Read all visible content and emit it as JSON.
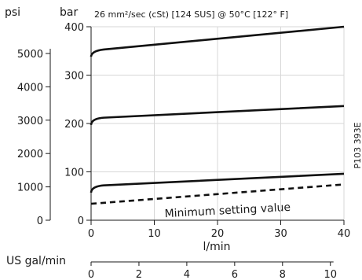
{
  "chart_data": {
    "type": "line",
    "title": "26 mm²/sec (cSt) [124 SUS] @ 50°C [122° F]",
    "code": "P103 393E",
    "xlabel": "l/min",
    "xlabel_secondary": "US gal/min",
    "ylabel_left_outer": "psi",
    "ylabel_left_inner": "bar",
    "xlim": [
      0,
      40
    ],
    "ylim": [
      0,
      400
    ],
    "x_ticks": [
      "0",
      "10",
      "20",
      "30",
      "40"
    ],
    "x2_ticks": [
      "0",
      "2",
      "4",
      "6",
      "8",
      "10"
    ],
    "x2_tick_values": [
      0,
      2,
      4,
      6,
      8,
      10
    ],
    "y_ticks_bar": [
      "0",
      "100",
      "200",
      "300",
      "400"
    ],
    "y_ticks_psi": [
      "0",
      "1000",
      "2000",
      "3000",
      "4000",
      "5000"
    ],
    "y_ticks_psi_values": [
      0,
      1000,
      2000,
      3000,
      4000,
      5000
    ],
    "annotation": "Minimum setting value",
    "series": [
      {
        "style": "solid",
        "points": [
          [
            0,
            338
          ],
          [
            0.5,
            350
          ],
          [
            2,
            353
          ],
          [
            40,
            400
          ]
        ]
      },
      {
        "style": "solid",
        "points": [
          [
            0,
            197
          ],
          [
            0.5,
            210
          ],
          [
            2,
            212
          ],
          [
            40,
            236
          ]
        ]
      },
      {
        "style": "solid",
        "points": [
          [
            0,
            57
          ],
          [
            0.5,
            70
          ],
          [
            2,
            72
          ],
          [
            40,
            96
          ]
        ]
      },
      {
        "style": "dashed",
        "points": [
          [
            0,
            34
          ],
          [
            40,
            74
          ]
        ]
      }
    ]
  }
}
